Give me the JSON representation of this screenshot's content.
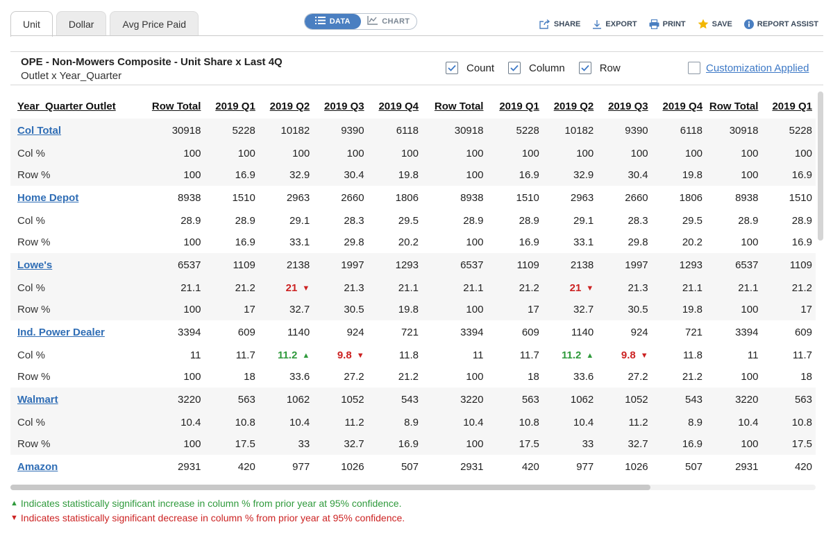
{
  "tabs": [
    {
      "label": "Unit",
      "active": true
    },
    {
      "label": "Dollar",
      "active": false
    },
    {
      "label": "Avg Price Paid",
      "active": false
    }
  ],
  "view_toggle": {
    "data_label": "DATA",
    "chart_label": "CHART",
    "selected": "DATA"
  },
  "actions": [
    {
      "label": "SHARE",
      "icon": "share-icon"
    },
    {
      "label": "EXPORT",
      "icon": "export-icon"
    },
    {
      "label": "PRINT",
      "icon": "print-icon"
    },
    {
      "label": "SAVE",
      "icon": "star-icon"
    },
    {
      "label": "REPORT ASSIST",
      "icon": "info-icon"
    }
  ],
  "report": {
    "title": "OPE - Non-Mowers Composite - Unit Share x Last 4Q",
    "subtitle": "Outlet x Year_Quarter"
  },
  "options": {
    "count": {
      "label": "Count",
      "checked": true
    },
    "column": {
      "label": "Column",
      "checked": true
    },
    "row": {
      "label": "Row",
      "checked": true
    },
    "customization": {
      "label": "Customization Applied",
      "checked": false
    }
  },
  "table": {
    "headers": [
      "Year_Quarter Outlet",
      "Row Total",
      "2019 Q1",
      "2019 Q2",
      "2019 Q3",
      "2019 Q4",
      "Row Total",
      "2019 Q1",
      "2019 Q2",
      "2019 Q3",
      "2019 Q4",
      "Row Total",
      "2019 Q1"
    ],
    "groups": [
      {
        "name": "Col Total",
        "rows": [
          {
            "label": null,
            "cells": [
              "30918",
              "5228",
              "10182",
              "9390",
              "6118",
              "30918",
              "5228",
              "10182",
              "9390",
              "6118",
              "30918",
              "5228"
            ]
          },
          {
            "label": "Col %",
            "cells": [
              "100",
              "100",
              "100",
              "100",
              "100",
              "100",
              "100",
              "100",
              "100",
              "100",
              "100",
              "100"
            ]
          },
          {
            "label": "Row %",
            "cells": [
              "100",
              "16.9",
              "32.9",
              "30.4",
              "19.8",
              "100",
              "16.9",
              "32.9",
              "30.4",
              "19.8",
              "100",
              "16.9"
            ]
          }
        ]
      },
      {
        "name": "Home Depot",
        "rows": [
          {
            "label": null,
            "cells": [
              "8938",
              "1510",
              "2963",
              "2660",
              "1806",
              "8938",
              "1510",
              "2963",
              "2660",
              "1806",
              "8938",
              "1510"
            ]
          },
          {
            "label": "Col %",
            "cells": [
              "28.9",
              "28.9",
              "29.1",
              "28.3",
              "29.5",
              "28.9",
              "28.9",
              "29.1",
              "28.3",
              "29.5",
              "28.9",
              "28.9"
            ]
          },
          {
            "label": "Row %",
            "cells": [
              "100",
              "16.9",
              "33.1",
              "29.8",
              "20.2",
              "100",
              "16.9",
              "33.1",
              "29.8",
              "20.2",
              "100",
              "16.9"
            ]
          }
        ]
      },
      {
        "name": "Lowe's",
        "rows": [
          {
            "label": null,
            "cells": [
              "6537",
              "1109",
              "2138",
              "1997",
              "1293",
              "6537",
              "1109",
              "2138",
              "1997",
              "1293",
              "6537",
              "1109"
            ]
          },
          {
            "label": "Col %",
            "cells": [
              "21.1",
              "21.2",
              "21 ▼",
              "21.3",
              "21.1",
              "21.1",
              "21.2",
              "21 ▼",
              "21.3",
              "21.1",
              "21.1",
              "21.2"
            ]
          },
          {
            "label": "Row %",
            "cells": [
              "100",
              "17",
              "32.7",
              "30.5",
              "19.8",
              "100",
              "17",
              "32.7",
              "30.5",
              "19.8",
              "100",
              "17"
            ]
          }
        ]
      },
      {
        "name": "Ind. Power Dealer",
        "rows": [
          {
            "label": null,
            "cells": [
              "3394",
              "609",
              "1140",
              "924",
              "721",
              "3394",
              "609",
              "1140",
              "924",
              "721",
              "3394",
              "609"
            ]
          },
          {
            "label": "Col %",
            "cells": [
              "11",
              "11.7",
              "11.2 ▲",
              "9.8 ▼",
              "11.8",
              "11",
              "11.7",
              "11.2 ▲",
              "9.8 ▼",
              "11.8",
              "11",
              "11.7"
            ]
          },
          {
            "label": "Row %",
            "cells": [
              "100",
              "18",
              "33.6",
              "27.2",
              "21.2",
              "100",
              "18",
              "33.6",
              "27.2",
              "21.2",
              "100",
              "18"
            ]
          }
        ]
      },
      {
        "name": "Walmart",
        "rows": [
          {
            "label": null,
            "cells": [
              "3220",
              "563",
              "1062",
              "1052",
              "543",
              "3220",
              "563",
              "1062",
              "1052",
              "543",
              "3220",
              "563"
            ]
          },
          {
            "label": "Col %",
            "cells": [
              "10.4",
              "10.8",
              "10.4",
              "11.2",
              "8.9",
              "10.4",
              "10.8",
              "10.4",
              "11.2",
              "8.9",
              "10.4",
              "10.8"
            ]
          },
          {
            "label": "Row %",
            "cells": [
              "100",
              "17.5",
              "33",
              "32.7",
              "16.9",
              "100",
              "17.5",
              "33",
              "32.7",
              "16.9",
              "100",
              "17.5"
            ]
          }
        ]
      },
      {
        "name": "Amazon",
        "rows": [
          {
            "label": null,
            "cells": [
              "2931",
              "420",
              "977",
              "1026",
              "507",
              "2931",
              "420",
              "977",
              "1026",
              "507",
              "2931",
              "420"
            ]
          }
        ]
      }
    ]
  },
  "legend": {
    "increase_symbol": "▲",
    "increase": "Indicates statistically significant increase in column % from prior year at 95% confidence.",
    "decrease_symbol": "▼",
    "decrease": "Indicates statistically significant decrease in column % from prior year at 95% confidence."
  },
  "colors": {
    "link": "#2f6db5",
    "increase": "#2f9a3c",
    "decrease": "#cc2222",
    "toggle_active": "#4a7fc1",
    "save_star": "#f2b705"
  }
}
